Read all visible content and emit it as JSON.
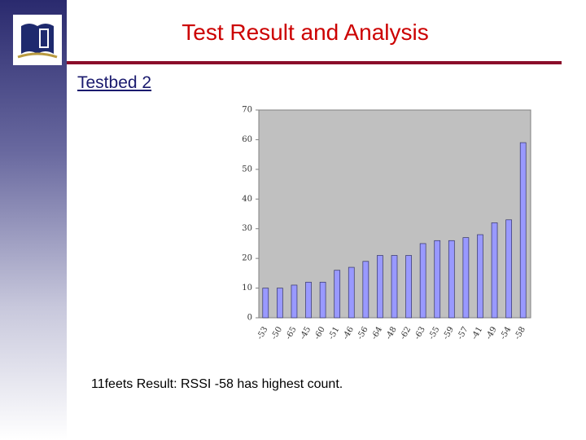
{
  "slide": {
    "title": "Test Result and Analysis",
    "heading": "Testbed 2",
    "caption": "11feets Result: RSSI -58 has highest count."
  },
  "chart_data": {
    "type": "bar",
    "categories": [
      "-53",
      "-50",
      "-65",
      "-45",
      "-60",
      "-51",
      "-46",
      "-56",
      "-64",
      "-48",
      "-62",
      "-63",
      "-55",
      "-59",
      "-57",
      "-41",
      "-49",
      "-54",
      "-58"
    ],
    "values": [
      10,
      10,
      11,
      12,
      12,
      16,
      17,
      19,
      21,
      21,
      21,
      25,
      26,
      26,
      27,
      28,
      32,
      33,
      59
    ],
    "color": "#9999ff",
    "ylim": [
      0,
      70
    ],
    "yticks": [
      0,
      10,
      20,
      30,
      40,
      50,
      60,
      70
    ]
  }
}
